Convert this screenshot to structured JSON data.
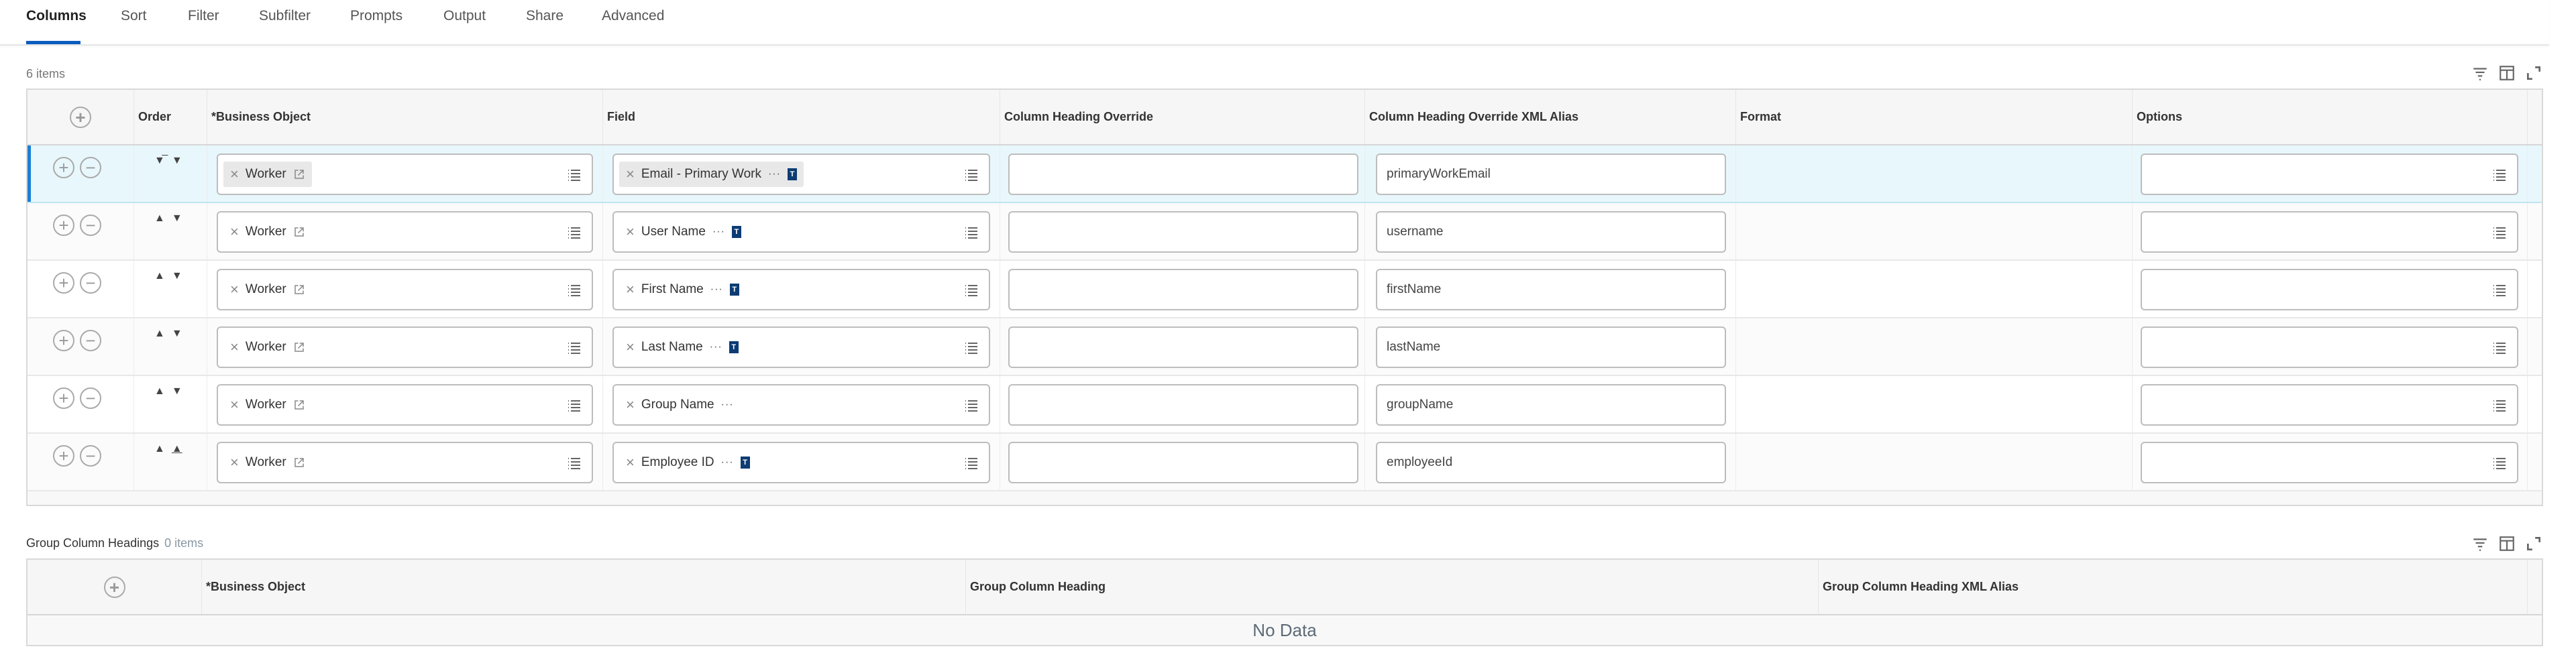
{
  "tabs": [
    "Columns",
    "Sort",
    "Filter",
    "Subfilter",
    "Prompts",
    "Output",
    "Share",
    "Advanced"
  ],
  "active_tab": "Columns",
  "colors": {
    "accent": "#0b5cbf",
    "selected_row": "#e8f7fc",
    "type_badge": "#0d3c73"
  },
  "columns_grid": {
    "count": "6 items",
    "headers": [
      "Order",
      "*Business Object",
      "Field",
      "Column Heading Override",
      "Column Heading Override XML Alias",
      "Format",
      "Options"
    ],
    "rows": [
      {
        "business_object": "Worker",
        "field": "Email - Primary Work",
        "field_badge": "T",
        "heading_override": "",
        "xml_alias": "primaryWorkEmail",
        "format": "",
        "options": "",
        "selected": true
      },
      {
        "business_object": "Worker",
        "field": "User Name",
        "field_badge": "T",
        "heading_override": "",
        "xml_alias": "username",
        "format": "",
        "options": ""
      },
      {
        "business_object": "Worker",
        "field": "First Name",
        "field_badge": "T",
        "heading_override": "",
        "xml_alias": "firstName",
        "format": "",
        "options": ""
      },
      {
        "business_object": "Worker",
        "field": "Last Name",
        "field_badge": "T",
        "heading_override": "",
        "xml_alias": "lastName",
        "format": "",
        "options": ""
      },
      {
        "business_object": "Worker",
        "field": "Group Name",
        "field_badge": "",
        "heading_override": "",
        "xml_alias": "groupName",
        "format": "",
        "options": ""
      },
      {
        "business_object": "Worker",
        "field": "Employee ID",
        "field_badge": "T",
        "heading_override": "",
        "xml_alias": "employeeId",
        "format": "",
        "options": ""
      }
    ]
  },
  "group_grid": {
    "title": "Group Column Headings",
    "count": "0 items",
    "headers": [
      "*Business Object",
      "Group Column Heading",
      "Group Column Heading XML Alias"
    ],
    "empty_text": "No Data"
  },
  "icons": {
    "toolbar": [
      "filter-icon",
      "column-layout-icon",
      "fullscreen-icon"
    ]
  }
}
